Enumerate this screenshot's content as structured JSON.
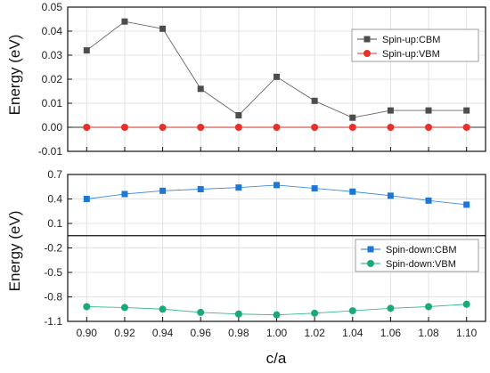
{
  "chart_data": [
    {
      "type": "line",
      "xlabel": "c/a",
      "ylabel": "Energy (eV)",
      "x": [
        0.9,
        0.92,
        0.94,
        0.96,
        0.98,
        1.0,
        1.02,
        1.04,
        1.06,
        1.08,
        1.1
      ],
      "xlim": [
        0.89,
        1.11
      ],
      "ylim": [
        -0.01,
        0.05
      ],
      "yticks": [
        -0.01,
        0.0,
        0.01,
        0.02,
        0.03,
        0.04,
        0.05
      ],
      "ytick_labels": [
        "-0.01",
        "0.00",
        "0.01",
        "0.02",
        "0.03",
        "0.04",
        "0.05"
      ],
      "grid": true,
      "legend": "top-right",
      "series": [
        {
          "name": "Spin-up:CBM",
          "marker": "square",
          "color": "#4d4d4d",
          "values": [
            0.032,
            0.044,
            0.041,
            0.016,
            0.005,
            0.021,
            0.011,
            0.004,
            0.007,
            0.007,
            0.007
          ]
        },
        {
          "name": "Spin-up:VBM",
          "marker": "circle",
          "color": "#e8302a",
          "values": [
            0,
            0,
            0,
            0,
            0,
            0,
            0,
            0,
            0,
            0,
            0
          ]
        }
      ]
    },
    {
      "type": "line",
      "xlabel": "c/a",
      "ylabel": "Energy (eV)",
      "x": [
        0.9,
        0.92,
        0.94,
        0.96,
        0.98,
        1.0,
        1.02,
        1.04,
        1.06,
        1.08,
        1.1
      ],
      "xlim": [
        0.89,
        1.11
      ],
      "ylim": [
        -1.1,
        0.7
      ],
      "yticks": [
        -1.1,
        -0.8,
        -0.5,
        -0.2,
        0.1,
        0.4,
        0.7
      ],
      "ytick_labels": [
        "-1.1",
        "-0.8",
        "-0.5",
        "-0.2",
        "0.1",
        "0.4",
        "0.7"
      ],
      "xtick_labels": [
        "0.90",
        "0.92",
        "0.94",
        "0.96",
        "0.98",
        "1.00",
        "1.02",
        "1.04",
        "1.06",
        "1.08",
        "1.10"
      ],
      "grid": true,
      "legend": "bottom-right",
      "series": [
        {
          "name": "Spin-down:CBM",
          "marker": "square",
          "color": "#1f77d4",
          "values": [
            0.4,
            0.46,
            0.5,
            0.52,
            0.54,
            0.57,
            0.53,
            0.49,
            0.44,
            0.38,
            0.33
          ]
        },
        {
          "name": "Spin-down:VBM",
          "marker": "circle",
          "color": "#1aaa7a",
          "values": [
            -0.92,
            -0.93,
            -0.95,
            -0.99,
            -1.01,
            -1.02,
            -1.0,
            -0.97,
            -0.94,
            -0.92,
            -0.89
          ]
        }
      ]
    }
  ]
}
